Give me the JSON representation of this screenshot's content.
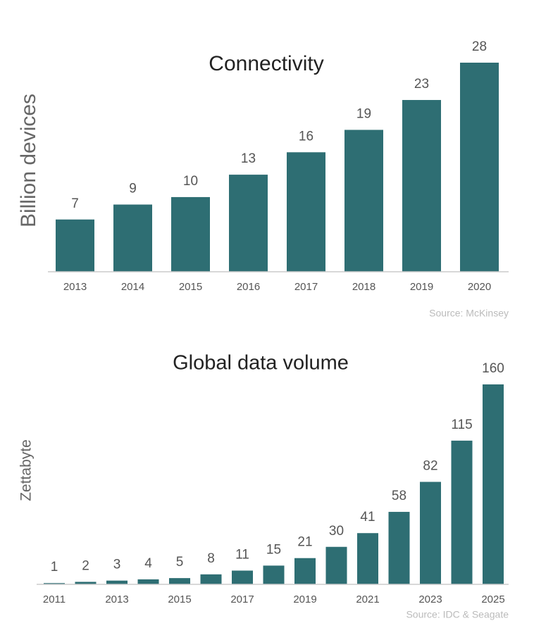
{
  "chart_data": [
    {
      "type": "bar",
      "title": "Connectivity",
      "y_label": "Billion devices",
      "source": "Source: McKinsey",
      "categories": [
        "2013",
        "2014",
        "2015",
        "2016",
        "2017",
        "2018",
        "2019",
        "2020"
      ],
      "values": [
        7,
        9,
        10,
        13,
        16,
        19,
        23,
        28
      ],
      "color": "#2e6e73",
      "ylim": [
        0,
        28
      ]
    },
    {
      "type": "bar",
      "title": "Global data volume",
      "y_label": "Zettabyte",
      "source": "Source: IDC & Seagate",
      "categories": [
        "2011",
        null,
        "2013",
        null,
        "2015",
        null,
        "2017",
        null,
        "2019",
        null,
        "2021",
        null,
        "2023",
        null,
        "2025"
      ],
      "values": [
        1,
        2,
        3,
        4,
        5,
        8,
        11,
        15,
        21,
        30,
        41,
        58,
        82,
        115,
        160
      ],
      "color": "#2e6e73",
      "ylim": [
        0,
        160
      ]
    }
  ]
}
